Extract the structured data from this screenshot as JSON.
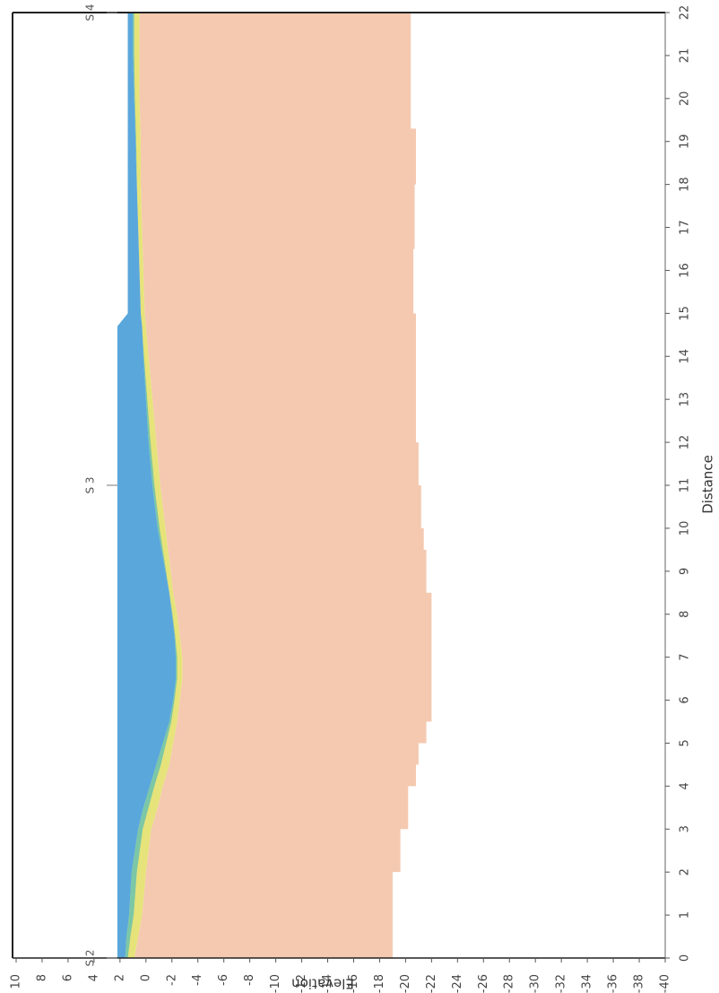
{
  "chart_data": {
    "type": "area",
    "title": "",
    "xlabel": "Distance",
    "ylabel": "Elevation",
    "orientation": "rotated-90-ccw",
    "xlim": [
      0,
      22
    ],
    "ylim": [
      -40,
      10
    ],
    "x_ticks": [
      "0",
      "1",
      "2",
      "3",
      "4",
      "5",
      "6",
      "7",
      "8",
      "9",
      "10",
      "11",
      "12",
      "13",
      "14",
      "15",
      "16",
      "17",
      "18",
      "19",
      "20",
      "21",
      "22"
    ],
    "y_ticks": [
      "10",
      "8",
      "6",
      "4",
      "2",
      "0",
      "-2",
      "-4",
      "-6",
      "-8",
      "-10",
      "-12",
      "-14",
      "-16",
      "-18",
      "-20",
      "-22",
      "-24",
      "-26",
      "-28",
      "-30",
      "-32",
      "-34",
      "-36",
      "-38",
      "-40"
    ],
    "boreholes": [
      {
        "label": "S 2",
        "x": 0
      },
      {
        "label": "S 3",
        "x": 11
      },
      {
        "label": "S 4",
        "x": 22
      }
    ],
    "legend": "none",
    "grid": false,
    "colors": {
      "ground_surface_water": "#5aa7dc",
      "transition": "#7cc7a6",
      "yellow_band": "#e6e37a",
      "soil_body": "#f4c9b0"
    },
    "series": [
      {
        "x": [
          0,
          0.5,
          1,
          2,
          3,
          3.5,
          4,
          4.5,
          5,
          5.5,
          6,
          6.5,
          7,
          7.5,
          8,
          8.5,
          9,
          9.5,
          10,
          10.5,
          11,
          12,
          13,
          14,
          14.7,
          15,
          16,
          17,
          18,
          19,
          20,
          21,
          22
        ],
        "top": [
          2.2,
          2.2,
          2.2,
          2.2,
          2.2,
          2.2,
          2.2,
          2.2,
          2.2,
          2.2,
          2.2,
          2.2,
          2.2,
          2.2,
          2.2,
          2.2,
          2.2,
          2.2,
          2.2,
          2.2,
          2.2,
          2.2,
          2.2,
          2.2,
          2.2,
          1.4,
          1.4,
          1.4,
          1.4,
          1.4,
          1.4,
          1.4,
          1.4
        ],
        "water_bottom": [
          1.6,
          1.5,
          1.3,
          1.1,
          0.6,
          0.2,
          -0.3,
          -0.8,
          -1.3,
          -1.8,
          -2.1,
          -2.3,
          -2.3,
          -2.2,
          -2.0,
          -1.8,
          -1.5,
          -1.2,
          -0.9,
          -0.7,
          -0.5,
          -0.2,
          0.0,
          0.2,
          0.3,
          0.4,
          0.5,
          0.6,
          0.7,
          0.8,
          0.9,
          1.0,
          1.0
        ],
        "yellow_bottom": [
          0.9,
          0.6,
          0.3,
          0.0,
          -0.4,
          -0.9,
          -1.3,
          -1.8,
          -2.1,
          -2.4,
          -2.6,
          -2.8,
          -2.8,
          -2.6,
          -2.4,
          -2.1,
          -1.9,
          -1.7,
          -1.5,
          -1.3,
          -1.1,
          -0.8,
          -0.5,
          -0.2,
          0.0,
          0.1,
          0.2,
          0.3,
          0.4,
          0.4,
          0.5,
          0.5,
          0.5
        ],
        "soil_bottom_steps": [
          {
            "x0": 0,
            "x1": 2,
            "y": -19.0
          },
          {
            "x0": 2,
            "x1": 3,
            "y": -19.6
          },
          {
            "x0": 3,
            "x1": 4,
            "y": -20.2
          },
          {
            "x0": 4,
            "x1": 4.5,
            "y": -20.8
          },
          {
            "x0": 4.5,
            "x1": 5,
            "y": -21.0
          },
          {
            "x0": 5,
            "x1": 5.5,
            "y": -21.6
          },
          {
            "x0": 5.5,
            "x1": 8.5,
            "y": -22.0
          },
          {
            "x0": 8.5,
            "x1": 9.5,
            "y": -21.6
          },
          {
            "x0": 9.5,
            "x1": 10,
            "y": -21.4
          },
          {
            "x0": 10,
            "x1": 11,
            "y": -21.2
          },
          {
            "x0": 11,
            "x1": 12,
            "y": -21.0
          },
          {
            "x0": 12,
            "x1": 15,
            "y": -20.8
          },
          {
            "x0": 15,
            "x1": 16.5,
            "y": -20.6
          },
          {
            "x0": 16.5,
            "x1": 18,
            "y": -20.7
          },
          {
            "x0": 18,
            "x1": 19.3,
            "y": -20.8
          },
          {
            "x0": 19.3,
            "x1": 20,
            "y": -20.4
          },
          {
            "x0": 20,
            "x1": 22,
            "y": -20.4
          }
        ]
      }
    ]
  }
}
